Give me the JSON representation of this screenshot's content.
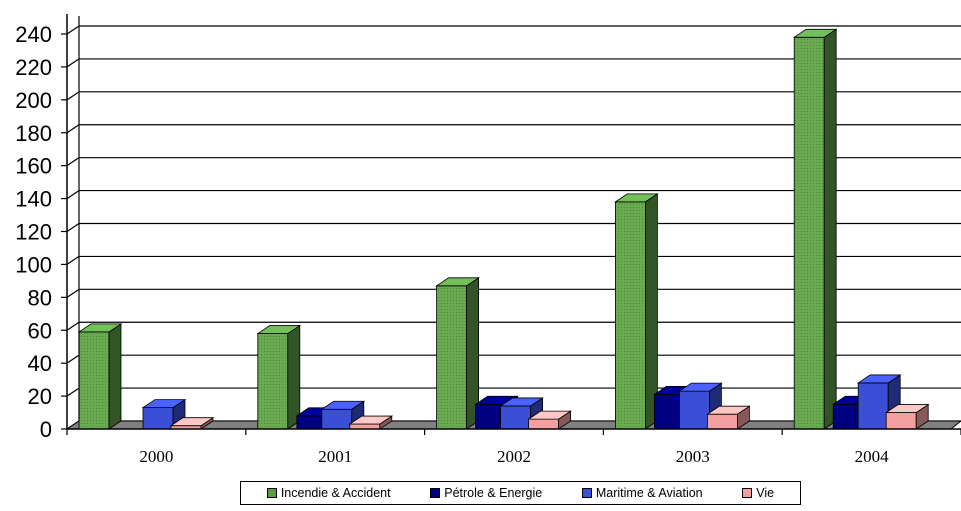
{
  "chart_data": {
    "type": "bar",
    "categories": [
      "2000",
      "2001",
      "2002",
      "2003",
      "2004"
    ],
    "series": [
      {
        "name": "Incendie & Accident",
        "values": [
          59,
          58,
          87,
          138,
          238
        ],
        "color": "#5a9a46"
      },
      {
        "name": "Pétrole & Energie",
        "values": [
          0,
          8,
          15,
          21,
          15
        ],
        "color": "#000080"
      },
      {
        "name": "Maritime & Aviation",
        "values": [
          13,
          12,
          14,
          23,
          28
        ],
        "color": "#3b4fd6"
      },
      {
        "name": "Vie",
        "values": [
          2,
          3,
          6,
          9,
          10
        ],
        "color": "#f4a0a0"
      }
    ],
    "ylim": [
      0,
      240
    ],
    "yticks": [
      0,
      20,
      40,
      60,
      80,
      100,
      120,
      140,
      160,
      180,
      200,
      220,
      240
    ],
    "grid": true,
    "legend_position": "bottom",
    "title": "",
    "xlabel": "",
    "ylabel": ""
  }
}
